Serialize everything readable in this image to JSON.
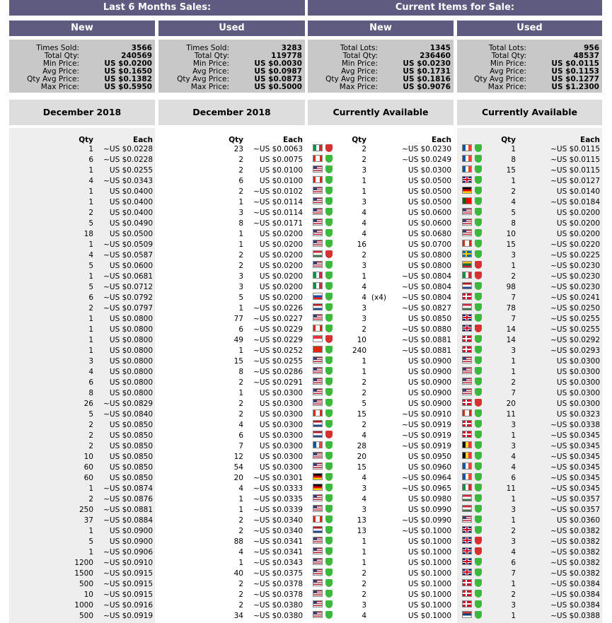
{
  "headers": {
    "left": "Last 6 Months Sales:",
    "right": "Current Items for Sale:"
  },
  "panels": [
    {
      "title": "New",
      "stats": [
        [
          "Times Sold:",
          "3566"
        ],
        [
          "Total Qty:",
          "240569"
        ],
        [
          "Min Price:",
          "US $0.0200"
        ],
        [
          "Avg Price:",
          "US $0.1650"
        ],
        [
          "Qty Avg Price:",
          "US $0.1382"
        ],
        [
          "Max Price:",
          "US $0.5950"
        ]
      ],
      "period": "December 2018"
    },
    {
      "title": "Used",
      "stats": [
        [
          "Times Sold:",
          "3283"
        ],
        [
          "Total Qty:",
          "119778"
        ],
        [
          "Min Price:",
          "US $0.0030"
        ],
        [
          "Avg Price:",
          "US $0.0987"
        ],
        [
          "Qty Avg Price:",
          "US $0.0873"
        ],
        [
          "Max Price:",
          "US $0.5000"
        ]
      ],
      "period": "December 2018"
    },
    {
      "title": "New",
      "stats": [
        [
          "Total Lots:",
          "1345"
        ],
        [
          "Total Qty:",
          "236460"
        ],
        [
          "Min Price:",
          "US $0.0230"
        ],
        [
          "Avg Price:",
          "US $0.1731"
        ],
        [
          "Qty Avg Price:",
          "US $0.1816"
        ],
        [
          "Max Price:",
          "US $0.9076"
        ]
      ],
      "period": "Currently Available"
    },
    {
      "title": "Used",
      "stats": [
        [
          "Total Lots:",
          "956"
        ],
        [
          "Total Qty:",
          "48537"
        ],
        [
          "Min Price:",
          "US $0.0115"
        ],
        [
          "Avg Price:",
          "US $0.1153"
        ],
        [
          "Qty Avg Price:",
          "US $0.1277"
        ],
        [
          "Max Price:",
          "US $1.2300"
        ]
      ],
      "period": "Currently Available"
    }
  ],
  "table_headers": {
    "qty": "Qty",
    "each": "Each"
  },
  "sold_new": [
    [
      "1",
      "~US $0.0228"
    ],
    [
      "6",
      "~US $0.0228"
    ],
    [
      "1",
      "US $0.0255"
    ],
    [
      "4",
      "~US $0.0343"
    ],
    [
      "1",
      "US $0.0400"
    ],
    [
      "1",
      "US $0.0400"
    ],
    [
      "2",
      "US $0.0400"
    ],
    [
      "5",
      "US $0.0490"
    ],
    [
      "18",
      "US $0.0500"
    ],
    [
      "1",
      "~US $0.0509"
    ],
    [
      "4",
      "~US $0.0587"
    ],
    [
      "5",
      "US $0.0600"
    ],
    [
      "1",
      "~US $0.0681"
    ],
    [
      "5",
      "~US $0.0712"
    ],
    [
      "6",
      "~US $0.0792"
    ],
    [
      "2",
      "~US $0.0797"
    ],
    [
      "1",
      "US $0.0800"
    ],
    [
      "1",
      "US $0.0800"
    ],
    [
      "1",
      "US $0.0800"
    ],
    [
      "1",
      "US $0.0800"
    ],
    [
      "3",
      "US $0.0800"
    ],
    [
      "4",
      "US $0.0800"
    ],
    [
      "6",
      "US $0.0800"
    ],
    [
      "8",
      "US $0.0800"
    ],
    [
      "26",
      "~US $0.0829"
    ],
    [
      "5",
      "~US $0.0840"
    ],
    [
      "2",
      "US $0.0850"
    ],
    [
      "2",
      "US $0.0850"
    ],
    [
      "2",
      "US $0.0850"
    ],
    [
      "10",
      "US $0.0850"
    ],
    [
      "60",
      "US $0.0850"
    ],
    [
      "60",
      "US $0.0850"
    ],
    [
      "1",
      "~US $0.0874"
    ],
    [
      "2",
      "~US $0.0876"
    ],
    [
      "250",
      "~US $0.0881"
    ],
    [
      "37",
      "~US $0.0884"
    ],
    [
      "1",
      "US $0.0900"
    ],
    [
      "5",
      "US $0.0900"
    ],
    [
      "1",
      "~US $0.0906"
    ],
    [
      "1200",
      "~US $0.0910"
    ],
    [
      "1500",
      "~US $0.0915"
    ],
    [
      "500",
      "~US $0.0915"
    ],
    [
      "10",
      "~US $0.0915"
    ],
    [
      "1000",
      "~US $0.0916"
    ],
    [
      "500",
      "~US $0.0919"
    ]
  ],
  "sold_used": [
    [
      "23",
      "~US $0.0063"
    ],
    [
      "2",
      "US $0.0075"
    ],
    [
      "2",
      "US $0.0100"
    ],
    [
      "6",
      "US $0.0100"
    ],
    [
      "2",
      "~US $0.0102"
    ],
    [
      "1",
      "~US $0.0114"
    ],
    [
      "3",
      "~US $0.0114"
    ],
    [
      "8",
      "~US $0.0171"
    ],
    [
      "1",
      "US $0.0200"
    ],
    [
      "1",
      "US $0.0200"
    ],
    [
      "2",
      "US $0.0200"
    ],
    [
      "2",
      "US $0.0200"
    ],
    [
      "3",
      "US $0.0200"
    ],
    [
      "3",
      "US $0.0200"
    ],
    [
      "5",
      "US $0.0200"
    ],
    [
      "1",
      "~US $0.0226"
    ],
    [
      "77",
      "~US $0.0227"
    ],
    [
      "6",
      "~US $0.0229"
    ],
    [
      "49",
      "~US $0.0229"
    ],
    [
      "1",
      "~US $0.0252"
    ],
    [
      "15",
      "~US $0.0255"
    ],
    [
      "8",
      "~US $0.0286"
    ],
    [
      "2",
      "~US $0.0291"
    ],
    [
      "1",
      "US $0.0300"
    ],
    [
      "2",
      "US $0.0300"
    ],
    [
      "2",
      "US $0.0300"
    ],
    [
      "4",
      "US $0.0300"
    ],
    [
      "6",
      "US $0.0300"
    ],
    [
      "7",
      "US $0.0300"
    ],
    [
      "12",
      "US $0.0300"
    ],
    [
      "54",
      "US $0.0300"
    ],
    [
      "20",
      "~US $0.0301"
    ],
    [
      "4",
      "~US $0.0333"
    ],
    [
      "1",
      "~US $0.0335"
    ],
    [
      "1",
      "~US $0.0339"
    ],
    [
      "2",
      "~US $0.0340"
    ],
    [
      "2",
      "~US $0.0340"
    ],
    [
      "88",
      "~US $0.0341"
    ],
    [
      "4",
      "~US $0.0341"
    ],
    [
      "1",
      "~US $0.0343"
    ],
    [
      "40",
      "~US $0.0375"
    ],
    [
      "2",
      "~US $0.0378"
    ],
    [
      "2",
      "~US $0.0378"
    ],
    [
      "2",
      "~US $0.0380"
    ],
    [
      "34",
      "~US $0.0380"
    ]
  ],
  "avail_new": [
    [
      "2",
      "~US $0.0230"
    ],
    [
      "2",
      "~US $0.0249"
    ],
    [
      "3",
      "US $0.0300"
    ],
    [
      "1",
      "US $0.0500"
    ],
    [
      "1",
      "US $0.0500"
    ],
    [
      "3",
      "US $0.0500"
    ],
    [
      "4",
      "US $0.0600"
    ],
    [
      "4",
      "US $0.0600"
    ],
    [
      "4",
      "US $0.0680"
    ],
    [
      "16",
      "US $0.0700"
    ],
    [
      "2",
      "US $0.0800"
    ],
    [
      "3",
      "US $0.0800"
    ],
    [
      "1",
      "~US $0.0804"
    ],
    [
      "4",
      "~US $0.0804"
    ],
    [
      "4 (x4)",
      "~US $0.0804"
    ],
    [
      "3",
      "~US $0.0827"
    ],
    [
      "3",
      "US $0.0850"
    ],
    [
      "2",
      "~US $0.0880"
    ],
    [
      "10",
      "~US $0.0881"
    ],
    [
      "240",
      "~US $0.0881"
    ],
    [
      "1",
      "US $0.0900"
    ],
    [
      "1",
      "US $0.0900"
    ],
    [
      "2",
      "US $0.0900"
    ],
    [
      "2",
      "US $0.0900"
    ],
    [
      "5",
      "US $0.0900"
    ],
    [
      "15",
      "~US $0.0910"
    ],
    [
      "2",
      "~US $0.0919"
    ],
    [
      "4",
      "~US $0.0919"
    ],
    [
      "28",
      "~US $0.0919"
    ],
    [
      "20",
      "US $0.0950"
    ],
    [
      "15",
      "US $0.0960"
    ],
    [
      "4",
      "~US $0.0964"
    ],
    [
      "3",
      "~US $0.0965"
    ],
    [
      "4",
      "US $0.0980"
    ],
    [
      "3",
      "US $0.0990"
    ],
    [
      "13",
      "~US $0.0990"
    ],
    [
      "13",
      "~US $0.1000"
    ],
    [
      "1",
      "US $0.1000"
    ],
    [
      "1",
      "US $0.1000"
    ],
    [
      "1",
      "US $0.1000"
    ],
    [
      "2",
      "US $0.1000"
    ],
    [
      "2",
      "US $0.1000"
    ],
    [
      "2",
      "US $0.1000"
    ],
    [
      "3",
      "US $0.1000"
    ],
    [
      "4",
      "US $0.1000"
    ]
  ],
  "avail_used": [
    [
      "1",
      "~US $0.0115"
    ],
    [
      "8",
      "~US $0.0115"
    ],
    [
      "15",
      "~US $0.0115"
    ],
    [
      "1",
      "~US $0.0127"
    ],
    [
      "2",
      "US $0.0140"
    ],
    [
      "4",
      "~US $0.0184"
    ],
    [
      "5",
      "US $0.0200"
    ],
    [
      "8",
      "US $0.0200"
    ],
    [
      "10",
      "US $0.0200"
    ],
    [
      "15",
      "~US $0.0220"
    ],
    [
      "3",
      "~US $0.0225"
    ],
    [
      "1",
      "~US $0.0230"
    ],
    [
      "2",
      "~US $0.0230"
    ],
    [
      "98",
      "~US $0.0230"
    ],
    [
      "7",
      "~US $0.0241"
    ],
    [
      "78",
      "~US $0.0250"
    ],
    [
      "7",
      "~US $0.0255"
    ],
    [
      "14",
      "~US $0.0255"
    ],
    [
      "14",
      "~US $0.0292"
    ],
    [
      "3",
      "~US $0.0293"
    ],
    [
      "1",
      "US $0.0300"
    ],
    [
      "1",
      "US $0.0300"
    ],
    [
      "2",
      "US $0.0300"
    ],
    [
      "7",
      "US $0.0300"
    ],
    [
      "20",
      "US $0.0300"
    ],
    [
      "11",
      "US $0.0323"
    ],
    [
      "3",
      "~US $0.0338"
    ],
    [
      "1",
      "~US $0.0345"
    ],
    [
      "3",
      "~US $0.0345"
    ],
    [
      "4",
      "~US $0.0345"
    ],
    [
      "4",
      "~US $0.0345"
    ],
    [
      "6",
      "~US $0.0345"
    ],
    [
      "11",
      "~US $0.0345"
    ],
    [
      "1",
      "~US $0.0357"
    ],
    [
      "3",
      "~US $0.0357"
    ],
    [
      "1",
      "US $0.0360"
    ],
    [
      "2",
      "~US $0.0382"
    ],
    [
      "3",
      "~US $0.0382"
    ],
    [
      "4",
      "~US $0.0382"
    ],
    [
      "6",
      "~US $0.0382"
    ],
    [
      "7",
      "~US $0.0382"
    ],
    [
      "1",
      "~US $0.0384"
    ],
    [
      "2",
      "~US $0.0384"
    ],
    [
      "3",
      "~US $0.0384"
    ],
    [
      "1",
      "~US $0.0388"
    ]
  ],
  "avail_new_flags": [
    "it",
    "ca",
    "us",
    "ca",
    "us",
    "us",
    "us",
    "us",
    "us",
    "us",
    "hu",
    "us",
    "it",
    "it",
    "sk",
    "nl",
    "us",
    "ca",
    "sg",
    "hk",
    "us",
    "us",
    "us",
    "us",
    "us",
    "ca",
    "nl",
    "nl",
    "fr",
    "us",
    "us",
    "de",
    "de",
    "us",
    "us",
    "ca",
    "nl",
    "us",
    "us",
    "us",
    "us",
    "us",
    "us",
    "us",
    "us"
  ],
  "avail_new_shields": [
    "r",
    "g",
    "g",
    "g",
    "g",
    "g",
    "g",
    "g",
    "g",
    "g",
    "r",
    "g",
    "g",
    "g",
    "g",
    "g",
    "g",
    "g",
    "r",
    "g",
    "g",
    "g",
    "g",
    "g",
    "g",
    "g",
    "g",
    "r",
    "g",
    "g",
    "g",
    "g",
    "g",
    "g",
    "g",
    "g",
    "g",
    "g",
    "g",
    "g",
    "g",
    "g",
    "g",
    "g",
    "g"
  ],
  "avail_used_flags": [
    "fr",
    "fr",
    "fr",
    "gb",
    "de",
    "pt",
    "us",
    "us",
    "us",
    "ca",
    "se",
    "lt",
    "it",
    "nl",
    "dk",
    "hu",
    "gb",
    "gb",
    "dk",
    "dk",
    "us",
    "us",
    "us",
    "us",
    "dk",
    "ca",
    "dk",
    "dk",
    "be",
    "be",
    "fr",
    "fr",
    "it",
    "hu",
    "hu",
    "us",
    "gb",
    "gb",
    "gb",
    "gb",
    "gb",
    "dk",
    "dk",
    "dk",
    "rs"
  ],
  "avail_used_shields": [
    "g",
    "g",
    "g",
    "g",
    "g",
    "g",
    "g",
    "g",
    "g",
    "g",
    "g",
    "r",
    "r",
    "g",
    "g",
    "g",
    "g",
    "r",
    "g",
    "g",
    "g",
    "g",
    "g",
    "g",
    "r",
    "g",
    "g",
    "g",
    "g",
    "g",
    "g",
    "g",
    "g",
    "g",
    "g",
    "g",
    "g",
    "r",
    "r",
    "g",
    "g",
    "g",
    "g",
    "g",
    "g"
  ],
  "flag_colors": {
    "us": [
      "#b22234",
      "#ffffff",
      "#3c3b6e"
    ],
    "ca": [
      "#d52b1e",
      "#ffffff",
      "#d52b1e"
    ],
    "it": [
      "#009246",
      "#ffffff",
      "#ce2b37"
    ],
    "fr": [
      "#0055a4",
      "#ffffff",
      "#ef4135"
    ],
    "be": [
      "#000000",
      "#fdda24",
      "#ef3340"
    ],
    "de": [
      "#000000",
      "#dd0000",
      "#ffce00"
    ],
    "nl": [
      "#ae1c28",
      "#ffffff",
      "#21468b"
    ],
    "hu": [
      "#cd2a3e",
      "#ffffff",
      "#436f4d"
    ],
    "lt": [
      "#fdb913",
      "#006a44",
      "#c1272d"
    ],
    "sk": [
      "#ffffff",
      "#0b4ea2",
      "#ee1c25"
    ],
    "rs": [
      "#c6363c",
      "#0c4076",
      "#ffffff"
    ],
    "sg": [
      "#ef3340",
      "#ffffff",
      "#ffffff"
    ],
    "hk": [
      "#de2910",
      "#de2910",
      "#de2910"
    ],
    "gb": [
      "#012169",
      "#c8102e",
      "#ffffff"
    ],
    "dk": [
      "#c8102e",
      "#ffffff",
      "#c8102e"
    ],
    "se": [
      "#006aa7",
      "#fecc00",
      "#006aa7"
    ],
    "pt": [
      "#006600",
      "#ff0000",
      "#ff0000"
    ]
  }
}
